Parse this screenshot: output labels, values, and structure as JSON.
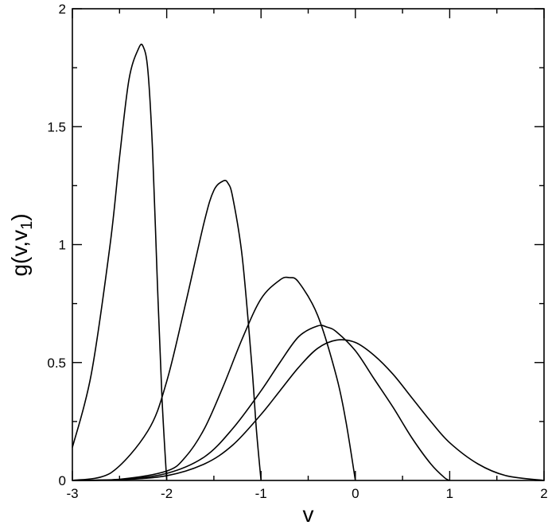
{
  "chart_data": {
    "type": "line",
    "xlabel": "v",
    "ylabel_main": "g(v,v",
    "ylabel_sub": "1",
    "ylabel_close": ")",
    "xlim": [
      -3,
      2
    ],
    "ylim": [
      0,
      2
    ],
    "x_major_ticks": [
      -3,
      -2,
      -1,
      0,
      1,
      2
    ],
    "x_tick_labels": [
      "-3",
      "-2",
      "-1",
      "0",
      "1",
      "2"
    ],
    "x_minor_ticks": [
      -2.5,
      -1.5,
      -0.5,
      0.5,
      1.5
    ],
    "y_major_ticks": [
      0,
      0.5,
      1,
      1.5,
      2
    ],
    "y_tick_labels": [
      "0",
      "0.5",
      "1",
      "1.5",
      "2"
    ],
    "y_minor_ticks": [
      0.25,
      0.75,
      1.25,
      1.75
    ],
    "grid": false,
    "legend": "none",
    "series": [
      {
        "x": [
          -3.0,
          -2.8,
          -2.6,
          -2.5,
          -2.4,
          -2.3,
          -2.25,
          -2.2,
          -2.15,
          -2.1,
          -2.05,
          -2.0
        ],
        "y": [
          0.14,
          0.45,
          1.0,
          1.37,
          1.7,
          1.83,
          1.84,
          1.74,
          1.4,
          0.85,
          0.35,
          0.0
        ]
      },
      {
        "x": [
          -3.0,
          -2.6,
          -2.2,
          -2.0,
          -1.8,
          -1.6,
          -1.5,
          -1.4,
          -1.35,
          -1.3,
          -1.2,
          -1.1,
          -1.05,
          -1.0
        ],
        "y": [
          0.0,
          0.03,
          0.21,
          0.42,
          0.75,
          1.1,
          1.23,
          1.27,
          1.26,
          1.2,
          0.95,
          0.5,
          0.22,
          0.0
        ]
      },
      {
        "x": [
          -3.0,
          -2.5,
          -2.0,
          -1.8,
          -1.6,
          -1.4,
          -1.2,
          -1.0,
          -0.8,
          -0.7,
          -0.6,
          -0.4,
          -0.2,
          -0.1,
          0.0
        ],
        "y": [
          0.0,
          0.005,
          0.04,
          0.1,
          0.22,
          0.4,
          0.6,
          0.77,
          0.85,
          0.86,
          0.84,
          0.7,
          0.44,
          0.25,
          0.0
        ]
      },
      {
        "x": [
          -3.0,
          -2.5,
          -2.0,
          -1.6,
          -1.3,
          -1.0,
          -0.8,
          -0.6,
          -0.4,
          -0.3,
          -0.2,
          0.0,
          0.2,
          0.4,
          0.6,
          0.8,
          0.95,
          1.0
        ],
        "y": [
          0.0,
          0.004,
          0.03,
          0.1,
          0.22,
          0.38,
          0.5,
          0.61,
          0.655,
          0.65,
          0.63,
          0.55,
          0.43,
          0.31,
          0.18,
          0.07,
          0.01,
          0.0
        ]
      },
      {
        "x": [
          -3.0,
          -2.5,
          -2.0,
          -1.6,
          -1.3,
          -1.0,
          -0.8,
          -0.6,
          -0.4,
          -0.2,
          0.0,
          0.2,
          0.4,
          0.6,
          0.8,
          1.0,
          1.3,
          1.6,
          2.0
        ],
        "y": [
          0.0,
          0.003,
          0.02,
          0.07,
          0.15,
          0.28,
          0.38,
          0.48,
          0.56,
          0.595,
          0.585,
          0.53,
          0.45,
          0.35,
          0.25,
          0.16,
          0.07,
          0.02,
          0.0
        ]
      }
    ]
  }
}
